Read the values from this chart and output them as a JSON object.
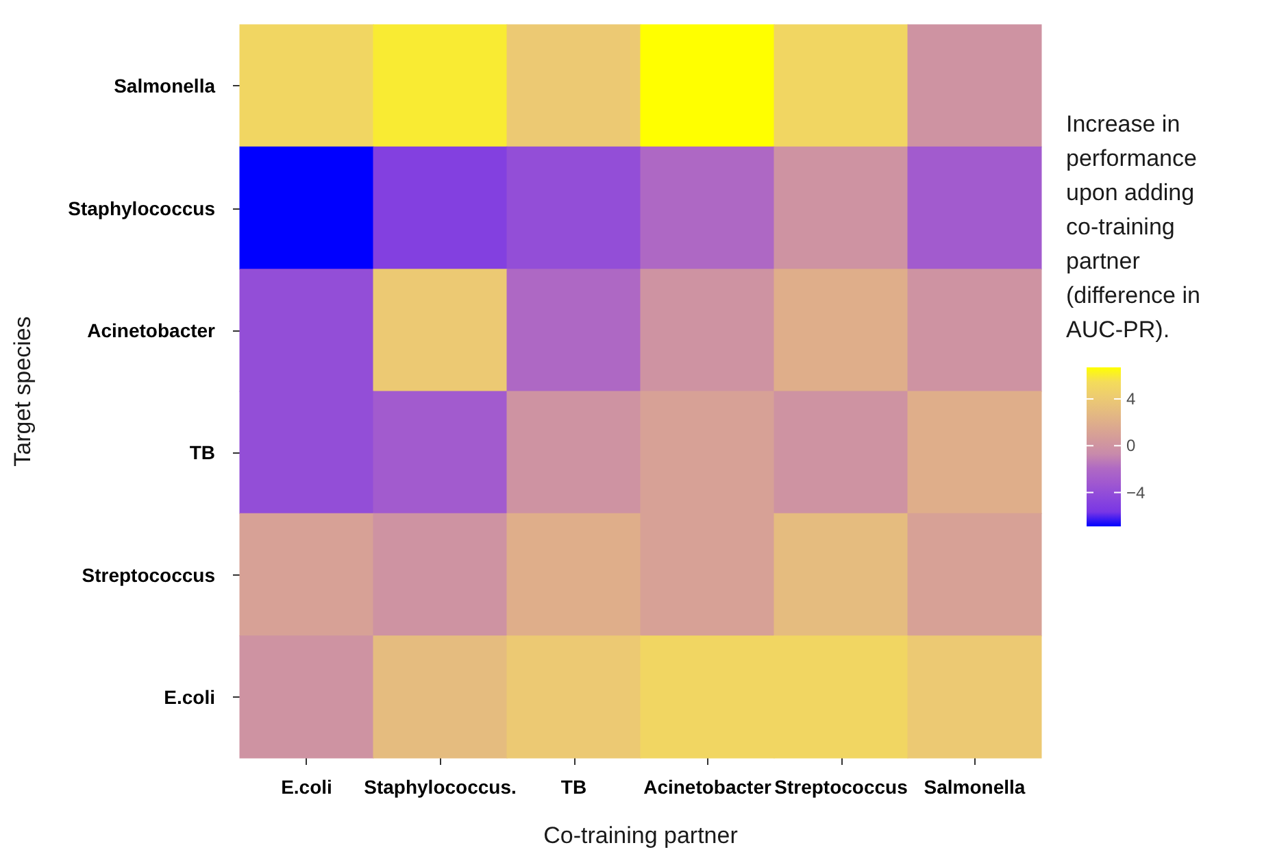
{
  "chart_data": {
    "type": "heatmap",
    "xlabel": "Co-training partner",
    "ylabel": "Target species",
    "legend_title": "Increase in performance upon adding co-training partner (difference in AUC-PR).",
    "categories": [
      "E.coli",
      "Staphylococcus.",
      "TB",
      "Acinetobacter",
      "Streptococcus",
      "Salmonella"
    ],
    "y_categories": [
      "Salmonella",
      "Staphylococcus",
      "Acinetobacter",
      "TB",
      "Streptococcus",
      "E.coli"
    ],
    "cells": [
      [
        5,
        6,
        4,
        6.7,
        5,
        0
      ],
      [
        -6.9,
        -5,
        -4,
        -2,
        0,
        -3
      ],
      [
        -4,
        4,
        -2,
        0,
        2,
        0
      ],
      [
        -4,
        -3,
        0,
        1,
        0,
        2
      ],
      [
        1,
        0,
        2,
        1,
        3,
        1
      ],
      [
        0,
        3,
        4,
        5,
        5,
        4
      ]
    ],
    "clim": [
      -6.9,
      6.7
    ],
    "cticks": [
      {
        "value": -4,
        "label": "−4"
      },
      0,
      4
    ]
  }
}
